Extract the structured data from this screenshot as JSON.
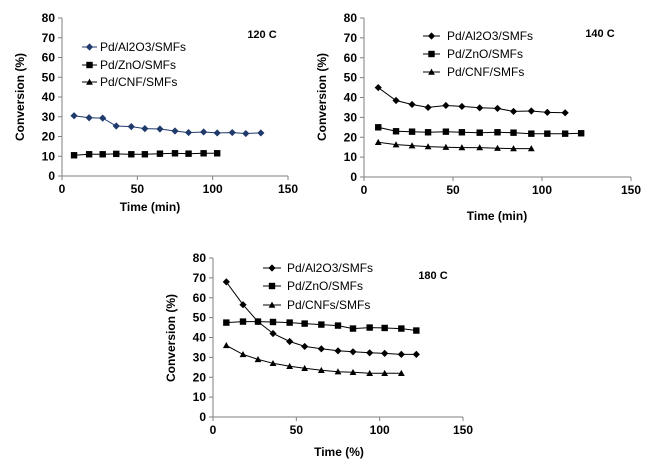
{
  "chart_data": [
    {
      "type": "line",
      "annotation": "120 C",
      "xlabel": "Time (min)",
      "ylabel": "Conversion (%)",
      "xlim": [
        0,
        150
      ],
      "ylim": [
        0,
        80
      ],
      "xticks": [
        0,
        50,
        100,
        150
      ],
      "yticks": [
        0,
        10,
        20,
        30,
        40,
        50,
        60,
        70,
        80
      ],
      "grid": false,
      "legend_position": "top-left",
      "series": [
        {
          "name": "Pd/Al2O3/SMFs",
          "marker": "diamond",
          "color": "#1f3a6b",
          "x": [
            8,
            18,
            27,
            36,
            46,
            55,
            65,
            75,
            84,
            94,
            103,
            113,
            122,
            132
          ],
          "y": [
            30.5,
            29.5,
            29.3,
            25.3,
            25.0,
            24.0,
            23.8,
            22.8,
            22.0,
            22.3,
            21.8,
            22.0,
            21.5,
            21.8
          ]
        },
        {
          "name": "Pd/ZnO/SMFs",
          "marker": "square",
          "color": "#000000",
          "x": [
            8,
            18,
            27,
            36,
            46,
            55,
            65,
            75,
            84,
            94,
            103
          ],
          "y": [
            10.5,
            11.0,
            11.0,
            11.2,
            11.0,
            11.0,
            11.3,
            11.5,
            11.3,
            11.5,
            11.5
          ]
        },
        {
          "name": "Pd/CNF/SMFs",
          "marker": "triangle",
          "color": "#000000",
          "x": [],
          "y": []
        }
      ]
    },
    {
      "type": "line",
      "annotation": "140 C",
      "xlabel": "Time (min)",
      "ylabel": "Conversion (%)",
      "xlim": [
        0,
        150
      ],
      "ylim": [
        0,
        80
      ],
      "xticks": [
        0,
        50,
        100,
        150
      ],
      "yticks": [
        0,
        10,
        20,
        30,
        40,
        50,
        60,
        70,
        80
      ],
      "grid": false,
      "legend_position": "top-center",
      "series": [
        {
          "name": "Pd/Al2O3/SMFs",
          "marker": "diamond",
          "color": "#000000",
          "x": [
            8,
            18,
            27,
            36,
            46,
            55,
            65,
            75,
            84,
            94,
            103,
            113
          ],
          "y": [
            45.0,
            38.5,
            36.5,
            35.0,
            36.0,
            35.5,
            34.8,
            34.5,
            33.0,
            33.2,
            32.5,
            32.3
          ]
        },
        {
          "name": "Pd/ZnO/SMFs",
          "marker": "square",
          "color": "#000000",
          "x": [
            8,
            18,
            27,
            36,
            46,
            55,
            65,
            75,
            84,
            94,
            103,
            113,
            122
          ],
          "y": [
            25.0,
            23.0,
            22.8,
            22.5,
            22.8,
            22.5,
            22.3,
            22.5,
            22.3,
            21.8,
            21.8,
            21.8,
            22.0
          ]
        },
        {
          "name": "Pd/CNF/SMFs",
          "marker": "triangle",
          "color": "#000000",
          "x": [
            8,
            18,
            27,
            36,
            46,
            55,
            65,
            75,
            84,
            94
          ],
          "y": [
            17.5,
            16.3,
            15.8,
            15.3,
            15.0,
            14.8,
            14.8,
            14.5,
            14.3,
            14.3
          ]
        }
      ]
    },
    {
      "type": "line",
      "annotation": "180 C",
      "xlabel": "Time (%)",
      "ylabel": "Conversion (%)",
      "xlim": [
        0,
        150
      ],
      "ylim": [
        0,
        80
      ],
      "xticks": [
        0,
        50,
        100,
        150
      ],
      "yticks": [
        0,
        10,
        20,
        30,
        40,
        50,
        60,
        70,
        80
      ],
      "grid": false,
      "legend_position": "top-right",
      "series": [
        {
          "name": "Pd/Al2O3/SMFs",
          "marker": "diamond",
          "color": "#000000",
          "x": [
            8,
            18,
            27,
            36,
            46,
            55,
            65,
            75,
            84,
            94,
            103,
            113,
            122
          ],
          "y": [
            68.0,
            56.5,
            48.0,
            42.0,
            38.0,
            35.5,
            34.3,
            33.3,
            32.8,
            32.3,
            32.0,
            31.5,
            31.5
          ]
        },
        {
          "name": "Pd/ZnO/SMFs",
          "marker": "square",
          "color": "#000000",
          "x": [
            8,
            18,
            27,
            36,
            46,
            55,
            65,
            75,
            84,
            94,
            103,
            113,
            122
          ],
          "y": [
            47.5,
            48.0,
            48.0,
            47.8,
            47.5,
            47.0,
            46.5,
            46.0,
            44.5,
            45.0,
            44.8,
            44.5,
            43.5
          ]
        },
        {
          "name": "Pd/CNFs/SMFs",
          "marker": "triangle",
          "color": "#000000",
          "x": [
            8,
            18,
            27,
            36,
            46,
            55,
            65,
            75,
            84,
            94,
            103,
            113
          ],
          "y": [
            36.0,
            31.5,
            29.0,
            27.0,
            25.5,
            24.5,
            23.5,
            22.8,
            22.5,
            22.0,
            22.0,
            22.0
          ]
        }
      ]
    }
  ]
}
